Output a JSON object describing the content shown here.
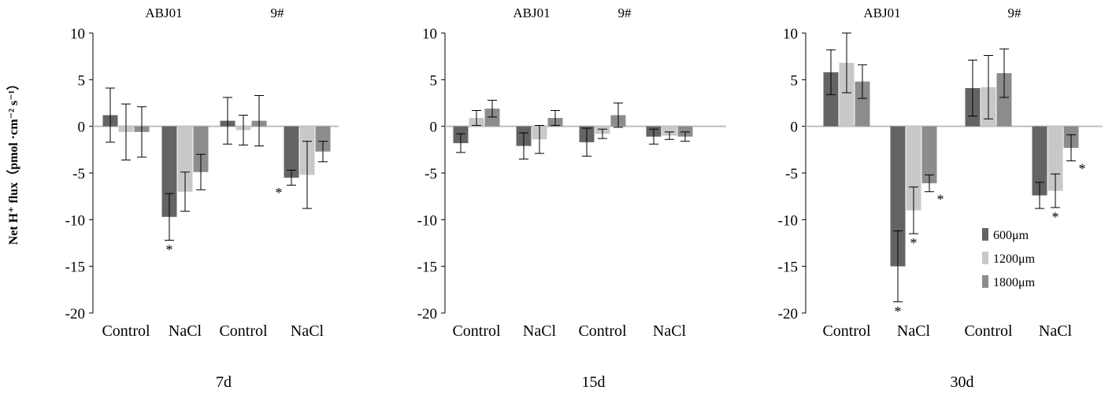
{
  "chart_data": {
    "type": "bar",
    "ylabel": "Net H⁺ flux（pmol ·cm⁻² s⁻¹）",
    "ylim": [
      -20,
      10
    ],
    "yticks": [
      10,
      5,
      0,
      -5,
      -10,
      -15,
      -20
    ],
    "grid": false,
    "legend_position": "right",
    "series": [
      {
        "name": "600μm",
        "color": "#646464"
      },
      {
        "name": "1200μm",
        "color": "#c8c8c8"
      },
      {
        "name": "1800μm",
        "color": "#8c8c8c"
      }
    ],
    "panels": [
      {
        "period": "7d",
        "groups": [
          {
            "label": "ABJ01",
            "categories": [
              "Control",
              "NaCl"
            ]
          },
          {
            "label": "9#",
            "categories": [
              "Control",
              "NaCl"
            ]
          }
        ],
        "categories": [
          "Control",
          "NaCl",
          "Control",
          "NaCl"
        ],
        "values": {
          "600μm": [
            1.2,
            -9.7,
            0.6,
            -5.5
          ],
          "1200μm": [
            -0.6,
            -7.0,
            -0.4,
            -5.2
          ],
          "1800μm": [
            -0.6,
            -4.9,
            0.6,
            -2.7
          ]
        },
        "errors": {
          "600μm": [
            2.9,
            2.5,
            2.5,
            0.8
          ],
          "1200μm": [
            3.0,
            2.1,
            1.6,
            3.6
          ],
          "1800μm": [
            2.7,
            1.9,
            2.7,
            1.1
          ]
        },
        "significance": [
          {
            "category": 1,
            "series": "600μm",
            "label": "*"
          },
          {
            "category": 3,
            "series": "600μm",
            "label": "*"
          }
        ]
      },
      {
        "period": "15d",
        "groups": [
          {
            "label": "ABJ01",
            "categories": [
              "Control",
              "NaCl"
            ]
          },
          {
            "label": "9#",
            "categories": [
              "Control",
              "NaCl"
            ]
          }
        ],
        "categories": [
          "Control",
          "NaCl",
          "Control",
          "NaCl"
        ],
        "values": {
          "600μm": [
            -1.8,
            -2.1,
            -1.7,
            -1.1
          ],
          "1200μm": [
            0.9,
            -1.4,
            -0.8,
            -1.0
          ],
          "1800μm": [
            1.9,
            0.9,
            1.2,
            -1.1
          ]
        },
        "errors": {
          "600μm": [
            1.0,
            1.4,
            1.5,
            0.8
          ],
          "1200μm": [
            0.8,
            1.5,
            0.5,
            0.4
          ],
          "1800μm": [
            0.9,
            0.8,
            1.3,
            0.5
          ]
        },
        "significance": []
      },
      {
        "period": "30d",
        "groups": [
          {
            "label": "ABJ01",
            "categories": [
              "Control",
              "NaCl"
            ]
          },
          {
            "label": "9#",
            "categories": [
              "Control",
              "NaCl"
            ]
          }
        ],
        "categories": [
          "Control",
          "NaCl",
          "Control",
          "NaCl"
        ],
        "values": {
          "600μm": [
            5.8,
            -15.0,
            4.1,
            -7.4
          ],
          "1200μm": [
            6.8,
            -9.0,
            4.2,
            -6.9
          ],
          "1800μm": [
            4.8,
            -6.1,
            5.7,
            -2.3
          ]
        },
        "errors": {
          "600μm": [
            2.4,
            3.8,
            3.0,
            1.4
          ],
          "1200μm": [
            3.2,
            2.5,
            3.4,
            1.8
          ],
          "1800μm": [
            1.8,
            0.9,
            2.6,
            1.4
          ]
        },
        "significance": [
          {
            "category": 1,
            "series": "600μm",
            "label": "*"
          },
          {
            "category": 1,
            "series": "1200μm",
            "label": "*"
          },
          {
            "category": 1,
            "series": "1800μm",
            "label": "*"
          },
          {
            "category": 3,
            "series": "1200μm",
            "label": "*"
          },
          {
            "category": 3,
            "series": "1800μm",
            "label": "*"
          }
        ]
      }
    ]
  }
}
